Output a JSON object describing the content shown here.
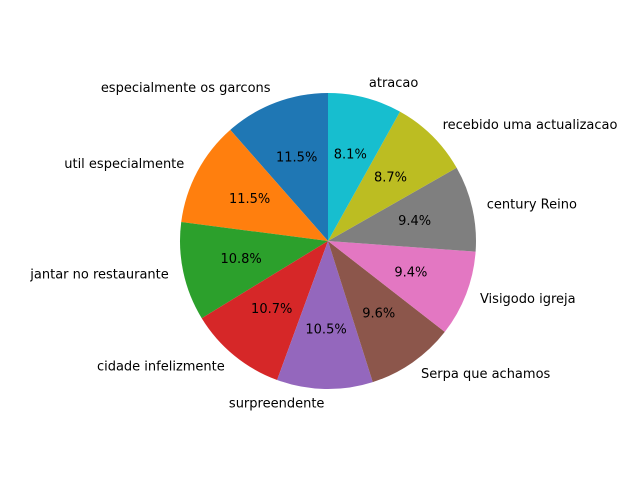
{
  "chart_data": {
    "type": "pie",
    "title": "",
    "start_angle_deg": 90,
    "direction": "counterclockwise",
    "slices": [
      {
        "label": "especialmente os garcons",
        "value": 11.5,
        "pct_text": "11.5%",
        "color": "#1f77b4"
      },
      {
        "label": "util especialmente",
        "value": 11.5,
        "pct_text": "11.5%",
        "color": "#ff7f0e"
      },
      {
        "label": "jantar no restaurante",
        "value": 10.8,
        "pct_text": "10.8%",
        "color": "#2ca02c"
      },
      {
        "label": "cidade infelizmente",
        "value": 10.7,
        "pct_text": "10.7%",
        "color": "#d62728"
      },
      {
        "label": "surpreendente",
        "value": 10.5,
        "pct_text": "10.5%",
        "color": "#9467bd"
      },
      {
        "label": "Serpa que achamos",
        "value": 9.6,
        "pct_text": "9.6%",
        "color": "#8c564b"
      },
      {
        "label": "Visigodo igreja",
        "value": 9.4,
        "pct_text": "9.4%",
        "color": "#e377c2"
      },
      {
        "label": "century Reino",
        "value": 9.4,
        "pct_text": "9.4%",
        "color": "#7f7f7f"
      },
      {
        "label": "recebido uma actualizacao",
        "value": 8.7,
        "pct_text": "8.7%",
        "color": "#bcbd22"
      },
      {
        "label": "atracao",
        "value": 8.1,
        "pct_text": "8.1%",
        "color": "#17becf"
      }
    ]
  }
}
